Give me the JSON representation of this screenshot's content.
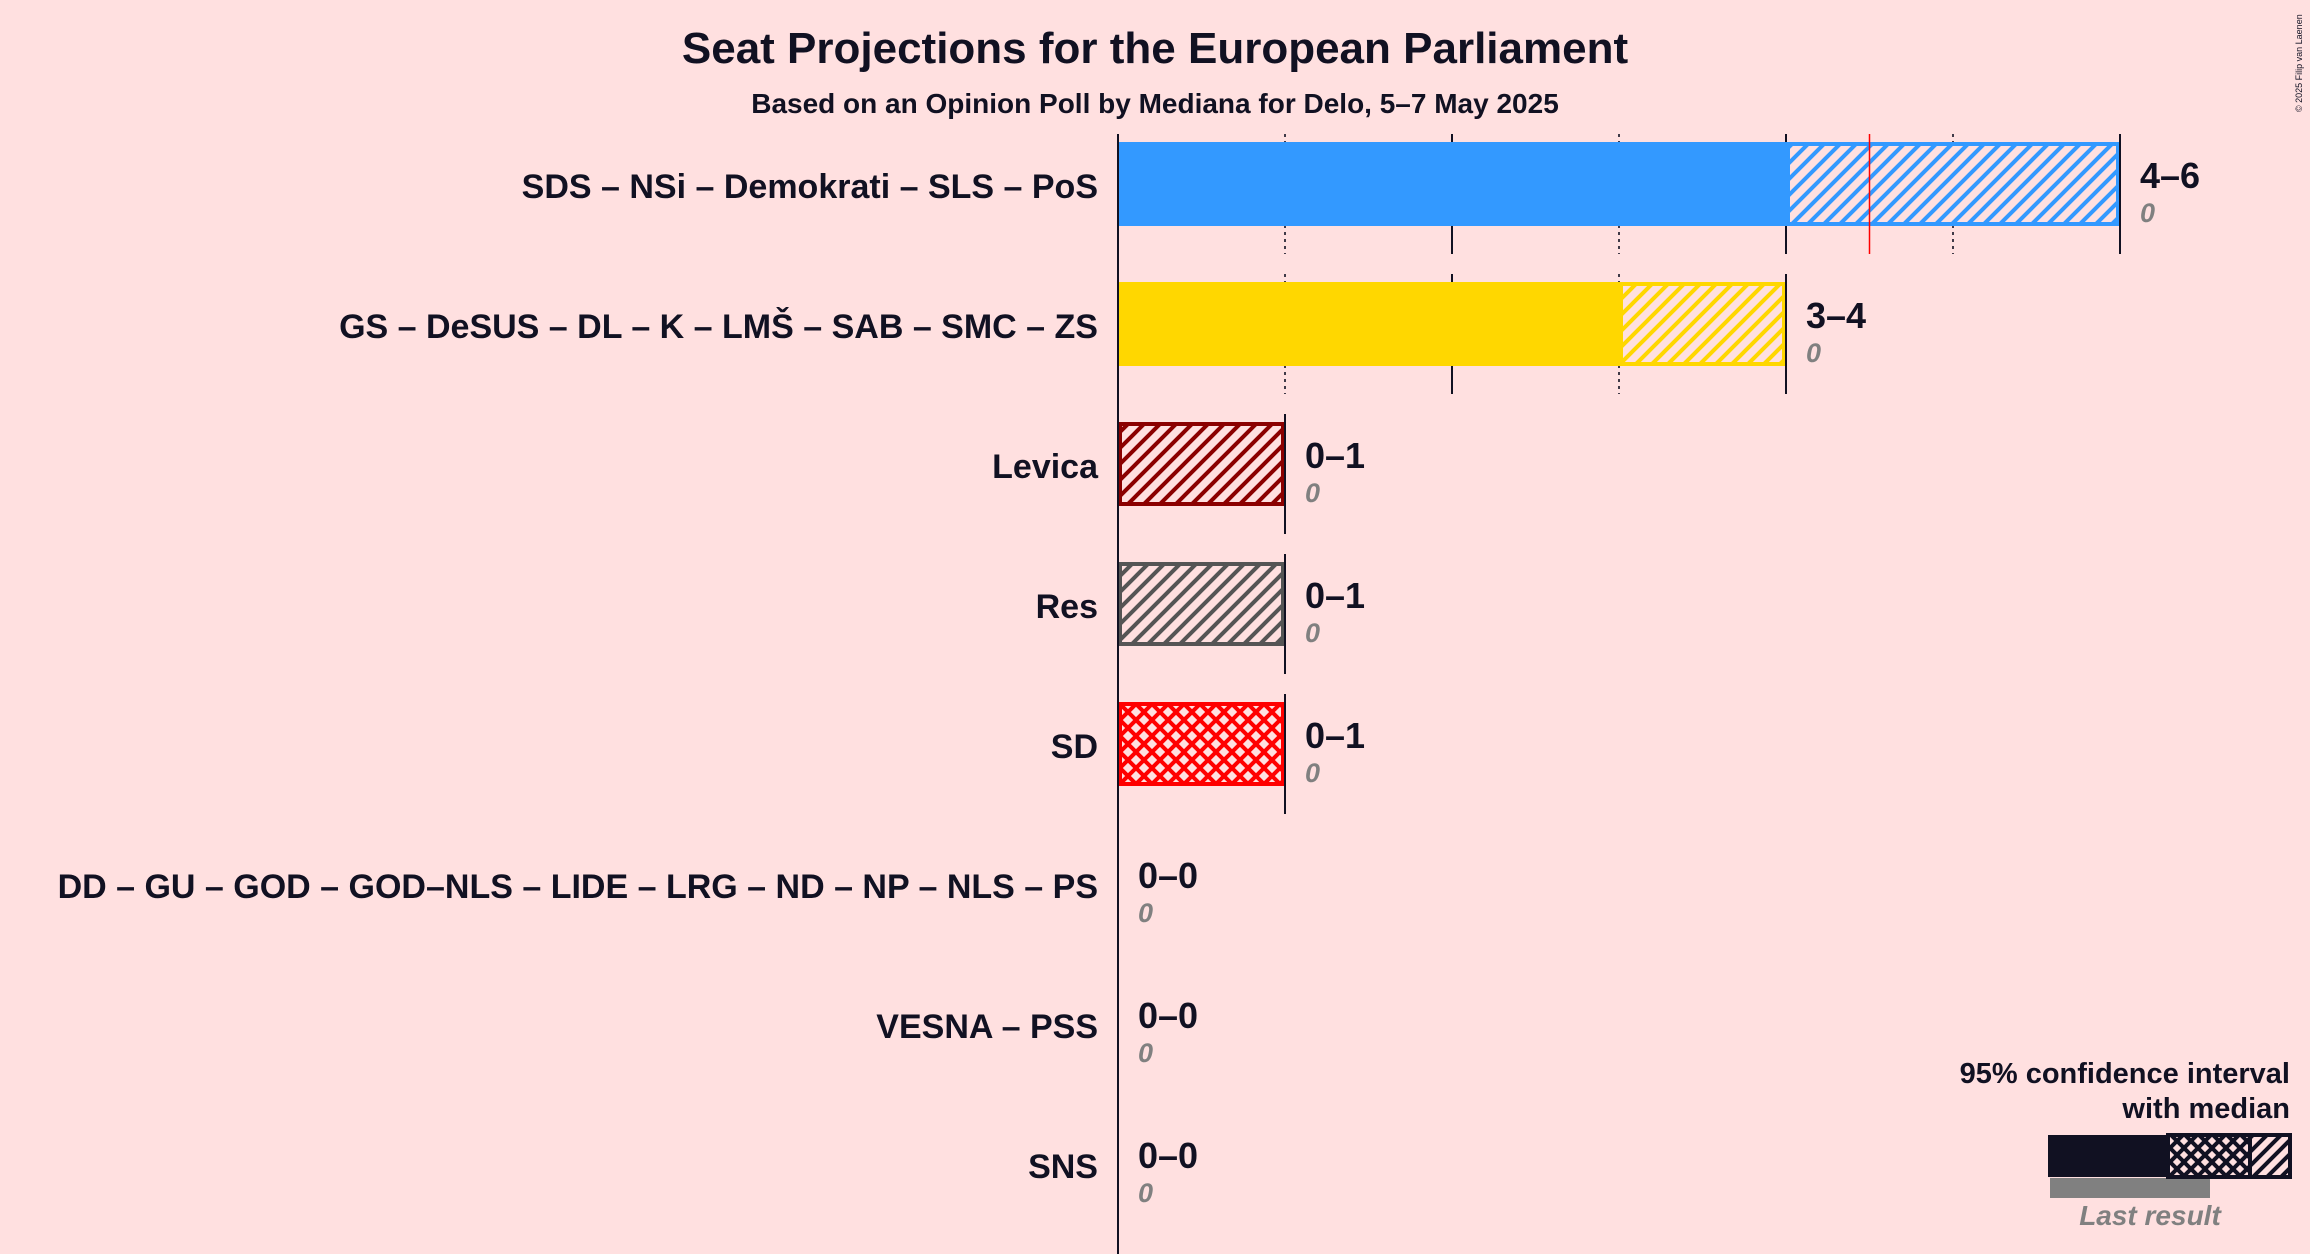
{
  "chart_data": {
    "type": "bar",
    "orientation": "horizontal",
    "title": "Seat Projections for the European Parliament",
    "subtitle": "Based on an Opinion Poll by Mediana for Delo, 5–7 May 2025",
    "copyright": "© 2025 Filip van Laenen",
    "x_range": [
      0,
      6
    ],
    "gridlines": "vertical, solid at even seats, dotted at odd seats",
    "series": [
      {
        "name": "SDS – NSi – Demokrati – SLS – PoS",
        "low": 4,
        "median": 4.5,
        "high": 6,
        "last_result": 0,
        "range_label": "4–6",
        "last_label": "0",
        "color": "#3399FF",
        "pattern": "diagonal"
      },
      {
        "name": "GS – DeSUS – DL – K – LMŠ – SAB – SMC – ZS",
        "low": 3,
        "median": 3,
        "high": 4,
        "last_result": 0,
        "range_label": "3–4",
        "last_label": "0",
        "color": "#FFD700",
        "pattern": "diagonal"
      },
      {
        "name": "Levica",
        "low": 0,
        "median": 0,
        "high": 1,
        "last_result": 0,
        "range_label": "0–1",
        "last_label": "0",
        "color": "#8B0000",
        "pattern": "diagonal"
      },
      {
        "name": "Res",
        "low": 0,
        "median": 0,
        "high": 1,
        "last_result": 0,
        "range_label": "0–1",
        "last_label": "0",
        "color": "#555555",
        "pattern": "diagonal"
      },
      {
        "name": "SD",
        "low": 0,
        "median": 0,
        "high": 1,
        "last_result": 0,
        "range_label": "0–1",
        "last_label": "0",
        "color": "#FF0000",
        "pattern": "crosshatch"
      },
      {
        "name": "DD – GU – GOD – GOD–NLS – LIDE – LRG – ND – NP – NLS – PS",
        "low": 0,
        "median": 0,
        "high": 0,
        "last_result": 0,
        "range_label": "0–0",
        "last_label": "0",
        "color": "#111122",
        "pattern": "none"
      },
      {
        "name": "VESNA – PSS",
        "low": 0,
        "median": 0,
        "high": 0,
        "last_result": 0,
        "range_label": "0–0",
        "last_label": "0",
        "color": "#111122",
        "pattern": "none"
      },
      {
        "name": "SNS",
        "low": 0,
        "median": 0,
        "high": 0,
        "last_result": 0,
        "range_label": "0–0",
        "last_label": "0",
        "color": "#111122",
        "pattern": "none"
      }
    ],
    "legend": {
      "title_line1": "95% confidence interval",
      "title_line2": "with median",
      "last_result_label": "Last result",
      "placement": "bottom-right"
    }
  }
}
